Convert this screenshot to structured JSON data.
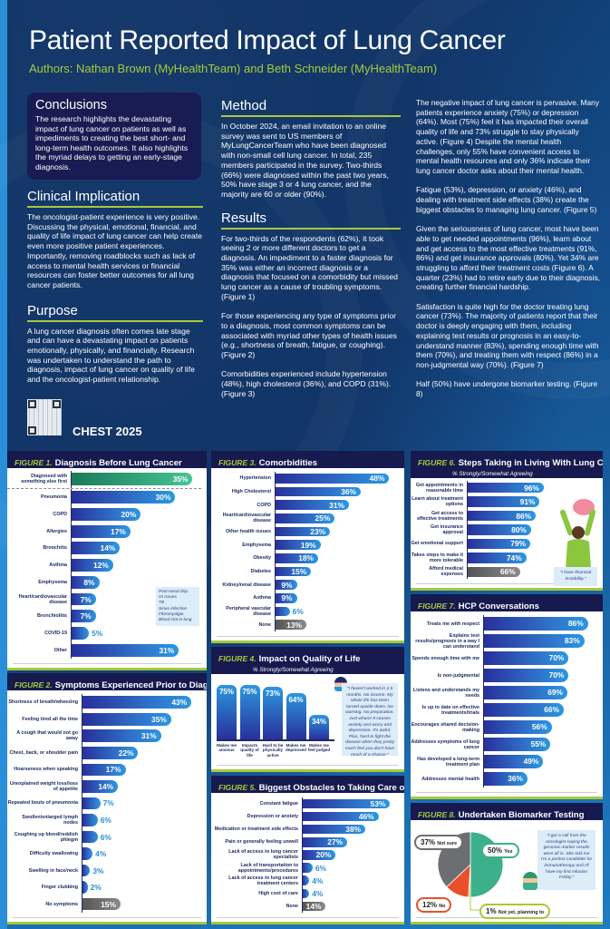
{
  "title": "Patient Reported Impact of Lung Cancer",
  "authors": "Authors: Nathan Brown (MyHealthTeam) and Beth Schneider (MyHealthTeam)",
  "conclusions": {
    "heading": "Conclusions",
    "text": "The research highlights the devastating impact of lung cancer on patients as well as impediments to creating the best short- and long-term health outcomes. It also highlights the myriad delays to getting an early-stage diagnosis."
  },
  "clinical": {
    "heading": "Clinical Implication",
    "text": "The oncologist-patient experience is very positive. Discussing the physical, emotional, financial, and quality of life impact of lung cancer can help create even more positive patient experiences. Importantly, removing roadblocks such as lack of access to mental health services or financial resources can foster better outcomes for all lung cancer patients."
  },
  "purpose": {
    "heading": "Purpose",
    "text": "A lung cancer diagnosis often comes late stage and can have a devastating impact on patients emotionally, physically, and financially. Research was undertaken to understand the path to diagnosis, impact of lung cancer on quality of life and the oncologist-patient relationship."
  },
  "conference": "CHEST 2025",
  "method": {
    "heading": "Method",
    "text": "In October 2024, an email invitation to an online survey was sent to US members of MyLungCancerTeam who have been diagnosed with non-small cell lung cancer. In total, 235 members participated in the survey. Two-thirds (66%) were diagnosed within the past two years, 50% have stage 3 or 4 lung cancer, and the majority are 60 or older (90%)."
  },
  "results": {
    "heading": "Results",
    "paragraphs": [
      "For two-thirds of the respondents (62%), it took seeing 2 or more different doctors to get a diagnosis. An impediment to a faster diagnosis for 35% was either an incorrect diagnosis or a diagnosis that focused on a comorbidity but missed lung cancer as a cause of troubling symptoms. (Figure 1)",
      "For those experiencing any type of symptoms prior to a diagnosis, most common symptoms can be associated with myriad other types of health issues (e.g., shortness of breath, fatigue, or coughing). (Figure 2)",
      "Comorbidities experienced include hypertension (48%), high cholesterol (36%), and COPD (31%). (Figure 3)"
    ]
  },
  "right_paragraphs": [
    "The negative impact of lung cancer is pervasive. Many patients experience anxiety (75%) or depression (64%). Most (75%) feel it has impacted their overall quality of life and 73% struggle to stay physically active. (Figure 4)  Despite the mental health challenges, only 55% have convenient access to mental health resources and only 36% indicate their lung cancer doctor asks about their mental health.",
    "Fatigue (53%), depression, or anxiety (46%), and dealing with treatment side effects (38%) create the biggest obstacles to managing lung cancer. (Figure 5)",
    "Given the seriousness of lung cancer, most have been able to get needed appointments (96%), learn about and get access to the most effective treatments (91%, 86%) and get insurance approvals (80%).  Yet 34% are struggling to afford their treatment costs (Figure 6). A quarter (23%) had to retire early due to their diagnosis, creating further financial hardship.",
    "Satisfaction is quite high for the doctor treating lung cancer (73%). The majority of patients report that their doctor is deeply engaging with them, including explaining test results or prognosis in an easy-to-understand manner (83%), spending enough time with them (70%), and treating them with respect (86%) in a non-judgmental way (70%). (Figure 7)",
    "Half (50%) have undergone biomarker testing. (Figure 8)"
  ],
  "colors": {
    "navy": "#161a4e",
    "accent_green": "#a8c93a",
    "bar_blue": "#2b97e0",
    "bar_dark": "#28309a",
    "highlight_green": "#47c495",
    "gray": "#7a7a7a"
  },
  "chart_data": [
    {
      "id": "fig1",
      "type": "bar",
      "orientation": "horizontal",
      "figure_label": "FIGURE 1.",
      "title": "Diagnosis Before Lung Cancer",
      "categories": [
        "Diagnosed with something else first",
        "Pneumonia",
        "COPD",
        "Allergies",
        "Bronchitis",
        "Asthma",
        "Emphysema",
        "Heart/cardiovascular disease",
        "Bronchiolitis",
        "COVID-19",
        "Other"
      ],
      "values": [
        35,
        30,
        20,
        17,
        14,
        12,
        8,
        7,
        7,
        5,
        31
      ],
      "unit": "%",
      "highlight": [
        "Diagnosed with something else first"
      ],
      "other_list": [
        "Post-nasal drip",
        "GI issues",
        "TB",
        "Sinus infection",
        "Fibromyalgia",
        "Blood clot in lung"
      ]
    },
    {
      "id": "fig2",
      "type": "bar",
      "orientation": "horizontal",
      "figure_label": "FIGURE 2.",
      "title": "Symptoms Experienced Prior to Diagnosis",
      "categories": [
        "Shortness of breath/wheezing",
        "Feeling tired all the time",
        "A cough that would not go away",
        "Chest, back, or shoulder pain",
        "Hoarseness when speaking",
        "Unexplained weight loss/loss of appetite",
        "Repeated bouts of pneumonia",
        "Swollen/enlarged lymph nodes",
        "Coughing up blood/reddish phlegm",
        "Difficulty swallowing",
        "Swelling in face/neck",
        "Finger clubbing",
        "No symptoms"
      ],
      "values": [
        43,
        35,
        31,
        22,
        17,
        14,
        7,
        6,
        6,
        4,
        3,
        2,
        15
      ],
      "unit": "%",
      "gray": [
        "No symptoms"
      ]
    },
    {
      "id": "fig3",
      "type": "bar",
      "orientation": "horizontal",
      "figure_label": "FIGURE 3.",
      "title": "Comorbidities",
      "categories": [
        "Hypertension",
        "High Cholesterol",
        "COPD",
        "Heart/cardiovascular disease",
        "Other health issues",
        "Emphysema",
        "Obesity",
        "Diabetes",
        "Kidney/renal disease",
        "Asthma",
        "Peripheral vascular disease",
        "None"
      ],
      "values": [
        48,
        36,
        31,
        25,
        23,
        19,
        18,
        15,
        9,
        9,
        6,
        13
      ],
      "unit": "%",
      "gray": [
        "None"
      ]
    },
    {
      "id": "fig4",
      "type": "bar",
      "orientation": "vertical",
      "figure_label": "FIGURE 4.",
      "title": "Impact on Quality of Life",
      "subtitle": "% Strongly/Somewhat Agreeing",
      "categories": [
        "Makes me anxious",
        "Impacts quality of life",
        "Hard to be physically active",
        "Makes me depressed",
        "Makes me feel judged"
      ],
      "values": [
        75,
        75,
        73,
        64,
        34
      ],
      "unit": "%",
      "quote": "\"I haven't worked in 2.5 months. No income. My whole life has been turned upside down. No warning. No preparation. Just wham! It causes anxiety and worry and depression. It's awful. Plus, hard to fight the disease when they pretty much feel you don't have much of a chance.\""
    },
    {
      "id": "fig5",
      "type": "bar",
      "orientation": "horizontal",
      "figure_label": "FIGURE 5.",
      "title": "Biggest Obstacles to Taking Care of Self",
      "categories": [
        "Constant fatigue",
        "Depression or anxiety",
        "Medication or treatment side effects",
        "Pain or generally feeling unwell",
        "Lack of access to lung cancer specialists",
        "Lack of transportation to appointments/procedures",
        "Lack of access to lung cancer treatment centers",
        "High cost of care",
        "None"
      ],
      "values": [
        53,
        46,
        38,
        27,
        20,
        6,
        4,
        4,
        14
      ],
      "unit": "%",
      "gray": [
        "None"
      ]
    },
    {
      "id": "fig6",
      "type": "bar",
      "orientation": "horizontal",
      "figure_label": "FIGURE 6.",
      "title": "Steps Taking in Living With Lung Cancer",
      "subtitle": "% Strongly/Somewhat Agreeing",
      "categories": [
        "Get appointments in reasonable time",
        "Learn about treatment options",
        "Get access to effective treatments",
        "Get insurance approval",
        "Get emotional support",
        "Takes steps to make it more tolerable",
        "Afford medical expenses"
      ],
      "values": [
        96,
        91,
        86,
        80,
        79,
        74,
        66
      ],
      "unit": "%",
      "gray": [
        "Afford medical expenses"
      ],
      "quote": "\"I have financial instability.\""
    },
    {
      "id": "fig7",
      "type": "bar",
      "orientation": "horizontal",
      "figure_label": "FIGURE 7.",
      "title": "HCP Conversations",
      "categories": [
        "Treats me with respect",
        "Explains test results/prognosis in a way I can understand",
        "Spends enough time with me",
        "Is non-judgmental",
        "Listens and understands my needs",
        "Is up to date on effective treatments/trials",
        "Encourages shared decision-making",
        "Addresses symptoms of lung cancer",
        "Has developed a long-term treatment plan",
        "Addresses mental health"
      ],
      "values": [
        86,
        83,
        70,
        70,
        69,
        66,
        56,
        55,
        49,
        36
      ],
      "unit": "%"
    },
    {
      "id": "fig8",
      "type": "pie",
      "figure_label": "FIGURE 8.",
      "title": "Undertaken Biomarker Testing",
      "slices": [
        {
          "label": "Yes",
          "value": 50,
          "color": "#3cb08a"
        },
        {
          "label": "Not yet, planning to",
          "value": 1,
          "color": "#a8c93a"
        },
        {
          "label": "No",
          "value": 12,
          "color": "#e8502a"
        },
        {
          "label": "Not sure",
          "value": 37,
          "color": "#6d6e72"
        }
      ],
      "unit": "%",
      "quote": "\"I got a call from the oncologist saying the genomic marker results were all in. She told me I'm a perfect candidate for immunotherapy and I'll have my first infusion Friday.\""
    }
  ]
}
